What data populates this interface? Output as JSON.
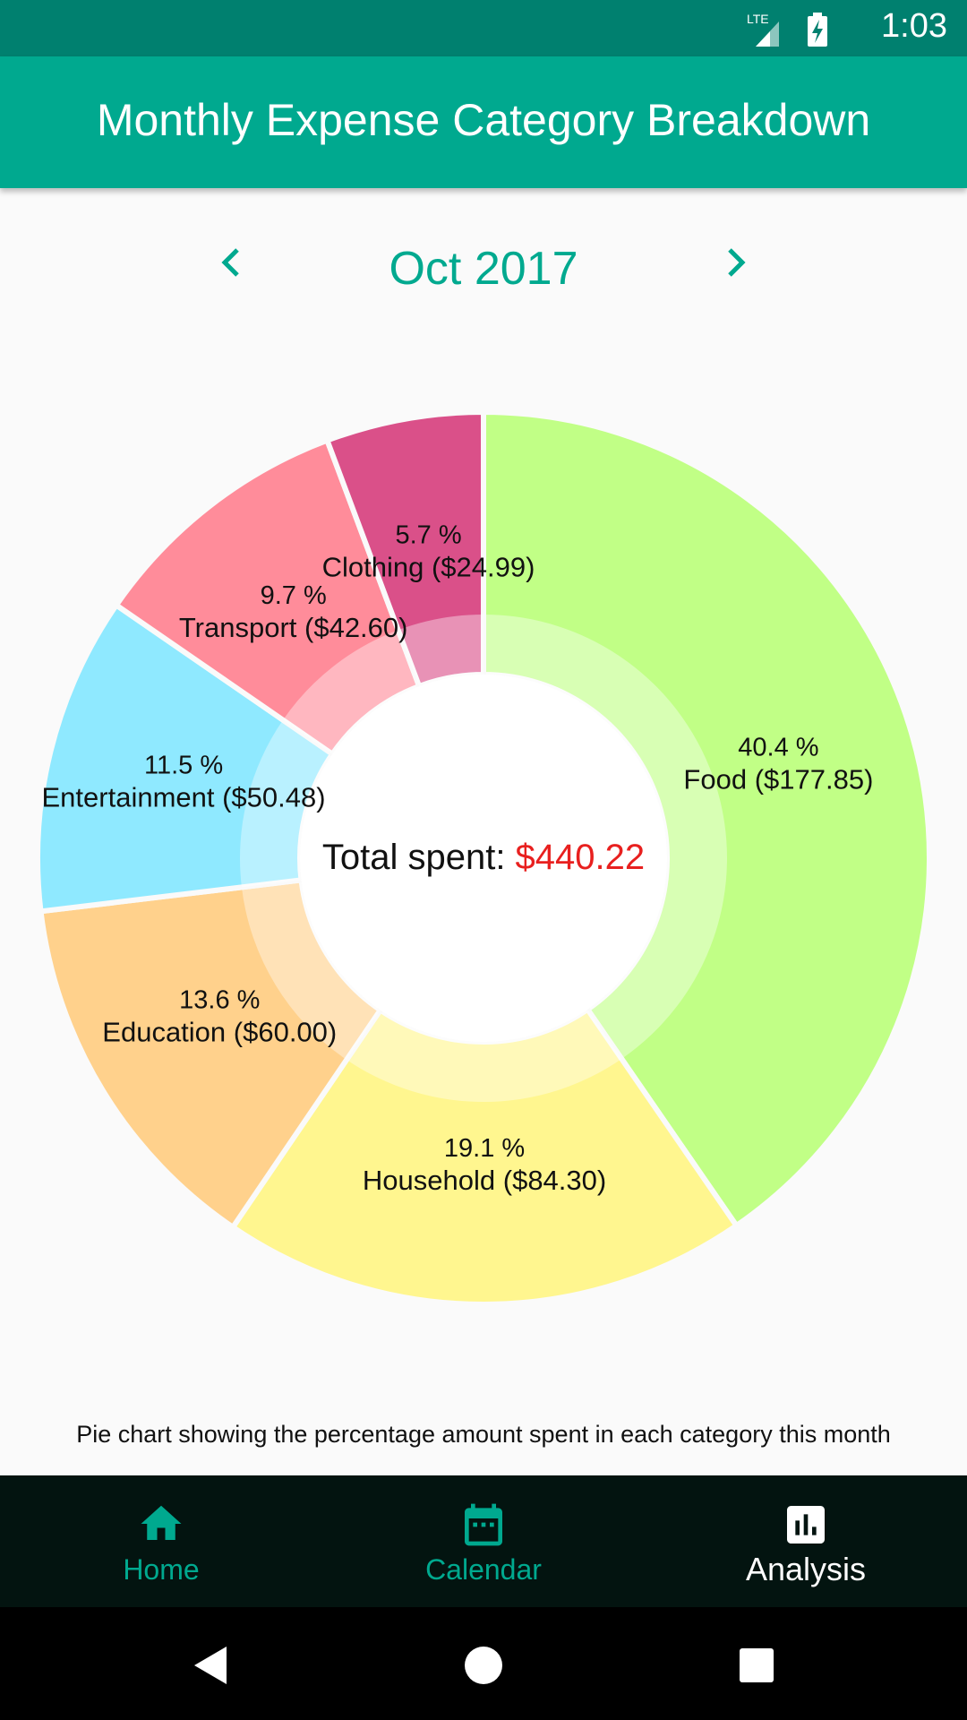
{
  "status_bar": {
    "time": "1:03",
    "network": "LTE"
  },
  "app_bar": {
    "title": "Monthly Expense Category Breakdown"
  },
  "month_nav": {
    "label": "Oct 2017",
    "prev_icon": "chevron-left-icon",
    "next_icon": "chevron-right-icon"
  },
  "chart_data": {
    "type": "pie",
    "title": "",
    "center_label": "Total spent: ",
    "center_value": "$440.22",
    "slices": [
      {
        "name": "Food",
        "amount": 177.85,
        "percent": 40.4,
        "pct_label": "40.4 %",
        "label": "Food ($177.85)",
        "color": "#c1ff86"
      },
      {
        "name": "Household",
        "amount": 84.3,
        "percent": 19.1,
        "pct_label": "19.1 %",
        "label": "Household ($84.30)",
        "color": "#fff68f"
      },
      {
        "name": "Education",
        "amount": 60.0,
        "percent": 13.6,
        "pct_label": "13.6 %",
        "label": "Education ($60.00)",
        "color": "#ffd18c"
      },
      {
        "name": "Entertainment",
        "amount": 50.48,
        "percent": 11.5,
        "pct_label": "11.5 %",
        "label": "Entertainment ($50.48)",
        "color": "#8fe9ff"
      },
      {
        "name": "Transport",
        "amount": 42.6,
        "percent": 9.7,
        "pct_label": "9.7 %",
        "label": "Transport ($42.60)",
        "color": "#ff8c9a"
      },
      {
        "name": "Clothing",
        "amount": 24.99,
        "percent": 5.7,
        "pct_label": "5.7 %",
        "label": "Clothing ($24.99)",
        "color": "#da5089"
      }
    ]
  },
  "caption": "Pie chart showing the percentage amount spent in each category this month",
  "bottom_nav": {
    "items": [
      {
        "label": "Home",
        "icon": "home-icon",
        "active": false
      },
      {
        "label": "Calendar",
        "icon": "calendar-icon",
        "active": false
      },
      {
        "label": "Analysis",
        "icon": "analysis-icon",
        "active": true
      }
    ]
  },
  "colors": {
    "status_bar": "#00806f",
    "app_bar": "#00a98f",
    "accent": "#00a98f",
    "nav_background": "#031410",
    "nav_active": "#ffffff",
    "total_value": "#e8201f"
  }
}
